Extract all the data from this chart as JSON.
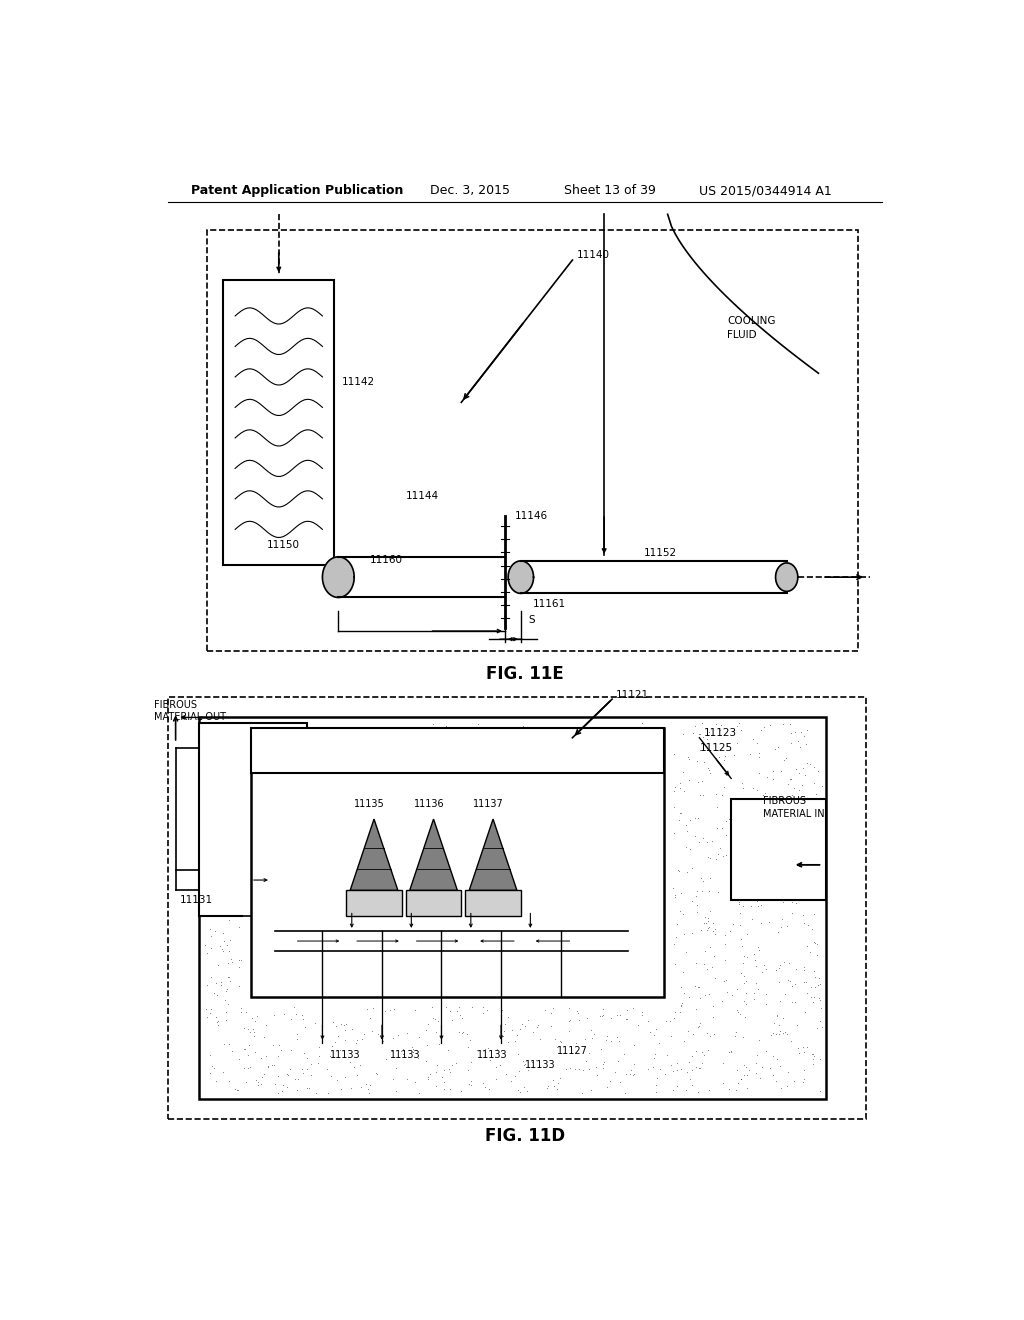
{
  "bg_color": "#ffffff",
  "text_color": "#000000",
  "line_color": "#000000",
  "header_text": "Patent Application Publication",
  "header_date": "Dec. 3, 2015",
  "header_sheet": "Sheet 13 of 39",
  "header_patent": "US 2015/0344914 A1",
  "fig11e_label": "FIG. 11E",
  "fig11d_label": "FIG. 11D"
}
